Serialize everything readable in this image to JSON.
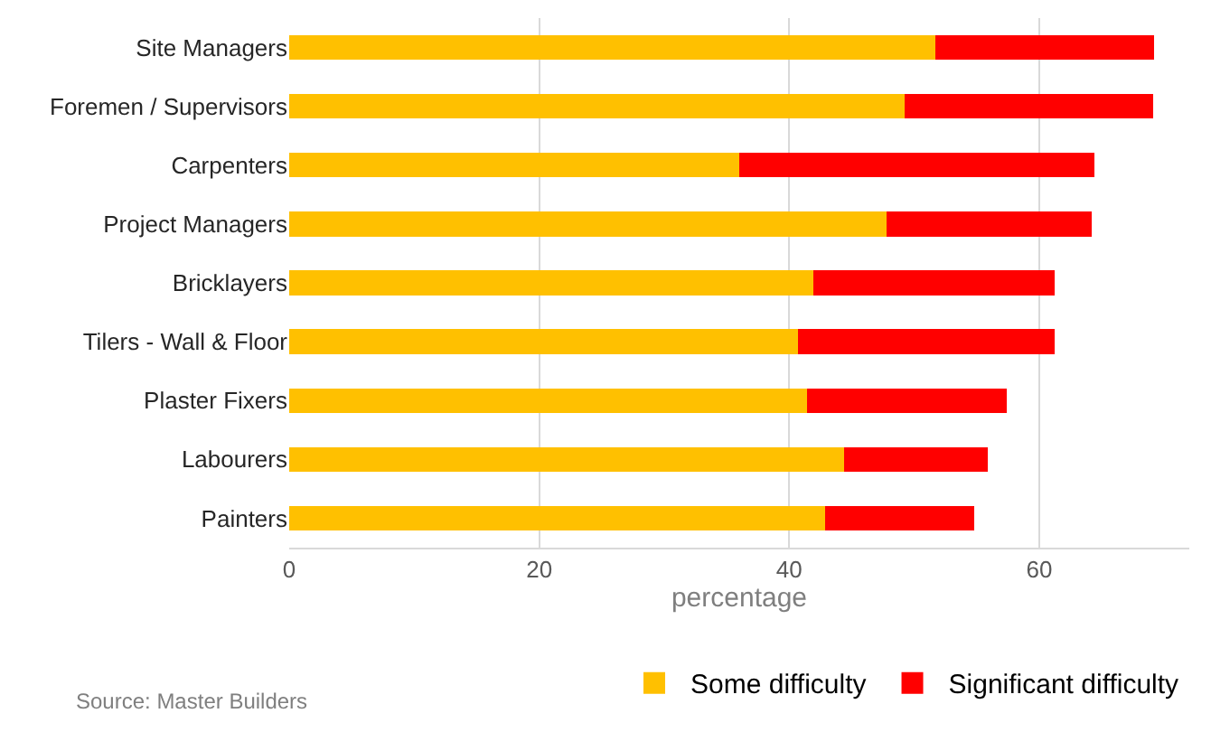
{
  "chart_data": {
    "type": "bar",
    "orientation": "horizontal",
    "stacked": true,
    "xlabel": "percentage",
    "categories": [
      "Site Managers",
      "Foremen / Supervisors",
      "Carpenters",
      "Project Managers",
      "Bricklayers",
      "Tilers - Wall & Floor",
      "Plaster Fixers",
      "Labourers",
      "Painters"
    ],
    "series": [
      {
        "name": "Some difficulty",
        "color": "#ffc000",
        "values": [
          51.7,
          49.2,
          36.0,
          47.8,
          41.9,
          40.7,
          41.4,
          44.4,
          42.9
        ]
      },
      {
        "name": "Significant difficulty",
        "color": "#ff0000",
        "values": [
          17.5,
          19.9,
          28.4,
          16.4,
          19.3,
          20.5,
          16.0,
          11.5,
          11.9
        ]
      }
    ],
    "xlim": [
      0,
      72
    ],
    "xticks": [
      0,
      20,
      40,
      60
    ],
    "grid": "x",
    "legend": "bottom right",
    "annotations": [
      "Source: Master Builders"
    ]
  }
}
